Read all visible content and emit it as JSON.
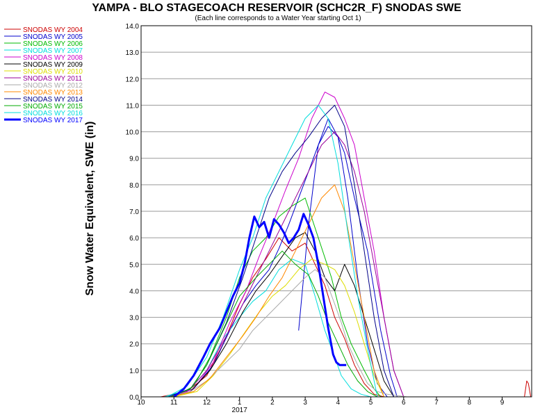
{
  "chart_data": {
    "type": "line",
    "title": "YAMPA - BLO STAGECOACH RESERVOIR (SCHC2R_F) SNODAS SWE",
    "subtitle": "(Each line corresponds to a Water Year starting Oct 1)",
    "ylabel": "Snow Water Equivalent, SWE (in)",
    "xlabel": "",
    "ylim": [
      0,
      14
    ],
    "yticks": [
      "0.0",
      "1.0",
      "2.0",
      "3.0",
      "4.0",
      "5.0",
      "6.0",
      "7.0",
      "8.0",
      "9.0",
      "10.0",
      "11.0",
      "12.0",
      "13.0",
      "14.0"
    ],
    "xlim": [
      10,
      21.9
    ],
    "xticks": [
      {
        "value": 10,
        "label": "10"
      },
      {
        "value": 11,
        "label": "11"
      },
      {
        "value": 12,
        "label": "12"
      },
      {
        "value": 13,
        "label": "1"
      },
      {
        "value": 14,
        "label": "2"
      },
      {
        "value": 15,
        "label": "3"
      },
      {
        "value": 16,
        "label": "4"
      },
      {
        "value": 17,
        "label": "5"
      },
      {
        "value": 18,
        "label": "6"
      },
      {
        "value": 19,
        "label": "7"
      },
      {
        "value": 20,
        "label": "8"
      },
      {
        "value": 21,
        "label": "9"
      }
    ],
    "xtick_year": {
      "value": 13,
      "label": "2017"
    },
    "grid": "horizontal",
    "legend_position": "left",
    "series": [
      {
        "name": "SNODAS WY 2004",
        "color": "#cc0000",
        "width": 1,
        "x": [
          10.6,
          11.4,
          12.0,
          12.5,
          13.0,
          13.4,
          13.8,
          14.2,
          14.6,
          15.0,
          15.3,
          15.6,
          15.9,
          16.2,
          16.5,
          16.8,
          17.1,
          17.4
        ],
        "y": [
          0,
          0.2,
          0.8,
          2.0,
          3.5,
          4.5,
          5.2,
          6.0,
          5.5,
          5.8,
          5.0,
          4.2,
          3.0,
          2.2,
          1.2,
          0.5,
          0.1,
          0
        ],
        "extra": {
          "x": [
            21.68,
            21.75,
            21.8,
            21.87
          ],
          "y": [
            0,
            0.6,
            0.5,
            0
          ]
        }
      },
      {
        "name": "SNODAS WY 2005",
        "color": "#0000cc",
        "width": 1,
        "x": [
          10.8,
          11.6,
          12.2,
          12.7,
          13.1,
          13.5,
          13.9,
          14.2,
          14.5,
          14.8,
          15.1,
          15.4,
          15.7,
          16.0,
          16.3,
          16.6,
          16.9,
          17.2,
          17.5
        ],
        "y": [
          0,
          0.3,
          1.2,
          2.5,
          3.5,
          4.2,
          4.8,
          5.6,
          6.5,
          7.5,
          8.5,
          9.5,
          10.2,
          9.8,
          7.5,
          4.5,
          2.0,
          0.5,
          0
        ],
        "extra": {
          "x": [
            14.8,
            15.1,
            15.4,
            15.7,
            16.0,
            16.2,
            16.5,
            16.9,
            17.3,
            17.6,
            17.8
          ],
          "y": [
            2.5,
            6.5,
            9.5,
            10.5,
            9.8,
            9.2,
            7.5,
            5.5,
            2.5,
            0.8,
            0
          ]
        }
      },
      {
        "name": "SNODAS WY 2006",
        "color": "#00bb00",
        "width": 1,
        "x": [
          11.0,
          11.6,
          12.1,
          12.6,
          13.0,
          13.4,
          13.8,
          14.2,
          14.6,
          15.0,
          15.4,
          15.8,
          16.1,
          16.4,
          16.8,
          17.1,
          17.3
        ],
        "y": [
          0,
          0.4,
          1.5,
          3.0,
          4.5,
          5.5,
          6.0,
          6.8,
          7.2,
          7.5,
          6.0,
          4.5,
          3.0,
          2.0,
          1.0,
          0.3,
          0
        ]
      },
      {
        "name": "SNODAS WY 2007",
        "color": "#00dddd",
        "width": 1,
        "x": [
          10.7,
          11.5,
          12.0,
          12.5,
          13.0,
          13.4,
          13.8,
          14.2,
          14.6,
          15.0,
          15.3,
          15.6,
          15.9,
          16.1,
          16.4,
          16.7,
          17.0
        ],
        "y": [
          0,
          0.3,
          1.0,
          2.2,
          3.0,
          3.6,
          4.0,
          4.8,
          5.2,
          5.0,
          3.8,
          2.5,
          1.5,
          0.8,
          0.3,
          0.1,
          0
        ]
      },
      {
        "name": "SNODAS WY 2008",
        "color": "#cc00cc",
        "width": 1,
        "x": [
          10.9,
          11.6,
          12.2,
          12.7,
          13.2,
          13.6,
          14.0,
          14.4,
          14.8,
          15.2,
          15.6,
          15.9,
          16.2,
          16.5,
          16.8,
          17.1,
          17.4,
          17.7,
          18.0
        ],
        "y": [
          0,
          0.3,
          1.3,
          2.8,
          4.0,
          5.3,
          6.5,
          7.8,
          9.0,
          10.5,
          11.5,
          11.3,
          10.5,
          9.5,
          7.5,
          5.5,
          3.0,
          1.0,
          0
        ]
      },
      {
        "name": "SNODAS WY 2009",
        "color": "#000000",
        "width": 1,
        "x": [
          10.9,
          11.5,
          12.1,
          12.6,
          13.1,
          13.5,
          13.9,
          14.3,
          14.7,
          15.0,
          15.3,
          15.6,
          15.9,
          16.2,
          16.5,
          16.8,
          17.1,
          17.4,
          17.7
        ],
        "y": [
          0,
          0.2,
          1.0,
          2.0,
          3.2,
          4.0,
          4.6,
          5.3,
          6.0,
          6.2,
          5.5,
          4.5,
          4.0,
          5.0,
          4.2,
          3.0,
          1.8,
          0.6,
          0
        ]
      },
      {
        "name": "SNODAS WY 2010",
        "color": "#dddd00",
        "width": 1,
        "x": [
          11.0,
          11.7,
          12.2,
          12.7,
          13.2,
          13.6,
          14.0,
          14.4,
          14.8,
          15.2,
          15.6,
          15.9,
          16.2,
          16.5,
          16.8,
          17.1,
          17.4
        ],
        "y": [
          0,
          0.2,
          0.8,
          1.6,
          2.5,
          3.2,
          3.8,
          4.2,
          4.8,
          5.2,
          5.0,
          4.8,
          4.2,
          3.2,
          2.0,
          0.8,
          0
        ]
      },
      {
        "name": "SNODAS WY 2011",
        "color": "#990099",
        "width": 1,
        "x": [
          10.8,
          11.5,
          12.0,
          12.6,
          13.1,
          13.5,
          13.9,
          14.3,
          14.7,
          15.1,
          15.5,
          15.9,
          16.2,
          16.5,
          16.8,
          17.1,
          17.4,
          17.7,
          18.0
        ],
        "y": [
          0,
          0.3,
          1.0,
          2.3,
          3.5,
          4.5,
          5.5,
          6.5,
          7.5,
          8.5,
          9.5,
          10.0,
          9.5,
          8.5,
          7.0,
          5.0,
          3.0,
          1.0,
          0
        ]
      },
      {
        "name": "SNODAS WY 2012",
        "color": "#aaaaaa",
        "width": 1,
        "x": [
          10.8,
          11.5,
          12.0,
          12.5,
          13.0,
          13.4,
          13.8,
          14.2,
          14.6,
          15.0,
          15.3,
          15.6,
          15.9,
          16.1,
          16.3,
          16.6,
          16.9,
          17.2,
          17.5,
          17.8,
          18.1
        ],
        "y": [
          0,
          0.2,
          0.6,
          1.2,
          1.8,
          2.5,
          3.0,
          3.5,
          4.0,
          4.5,
          4.8,
          4.5,
          3.5,
          2.8,
          2.0,
          1.2,
          0.5,
          0.2,
          0.1,
          0.05,
          0
        ]
      },
      {
        "name": "SNODAS WY 2013",
        "color": "#ff8800",
        "width": 1,
        "x": [
          10.9,
          11.6,
          12.1,
          12.6,
          13.1,
          13.5,
          13.9,
          14.3,
          14.7,
          15.1,
          15.5,
          15.9,
          16.2,
          16.5,
          16.8,
          17.1,
          17.4
        ],
        "y": [
          0,
          0.2,
          0.7,
          1.5,
          2.3,
          3.0,
          3.8,
          4.5,
          5.5,
          6.5,
          7.5,
          8.0,
          7.0,
          5.0,
          3.0,
          1.0,
          0
        ]
      },
      {
        "name": "SNODAS WY 2014",
        "color": "#000088",
        "width": 1,
        "x": [
          10.8,
          11.5,
          12.0,
          12.6,
          13.1,
          13.5,
          13.9,
          14.3,
          14.7,
          15.1,
          15.5,
          15.9,
          16.2,
          16.5,
          16.8,
          17.1,
          17.4,
          17.7
        ],
        "y": [
          0,
          0.3,
          1.2,
          2.8,
          4.5,
          6.0,
          7.5,
          8.5,
          9.2,
          9.8,
          10.5,
          11.0,
          10.2,
          8.0,
          5.5,
          3.0,
          1.0,
          0
        ]
      },
      {
        "name": "SNODAS WY 2015",
        "color": "#00aa00",
        "width": 1,
        "x": [
          10.9,
          11.5,
          12.0,
          12.5,
          13.0,
          13.5,
          13.9,
          14.3,
          14.7,
          15.1,
          15.4,
          15.7,
          16.0,
          16.3,
          16.6,
          16.9,
          17.2
        ],
        "y": [
          0,
          0.3,
          1.2,
          2.5,
          3.8,
          4.5,
          5.0,
          5.5,
          5.0,
          4.6,
          3.8,
          2.8,
          2.0,
          1.2,
          0.6,
          0.2,
          0
        ]
      },
      {
        "name": "SNODAS WY 2016",
        "color": "#00dddd",
        "width": 1,
        "x": [
          10.8,
          11.4,
          12.0,
          12.5,
          13.0,
          13.4,
          13.8,
          14.2,
          14.6,
          15.0,
          15.4,
          15.7,
          16.0,
          16.3,
          16.6,
          16.9,
          17.2
        ],
        "y": [
          0,
          0.4,
          1.5,
          3.0,
          4.8,
          6.0,
          7.5,
          8.5,
          9.5,
          10.5,
          11.0,
          10.5,
          8.8,
          6.2,
          3.8,
          1.8,
          0
        ]
      },
      {
        "name": "SNODAS WY 2017",
        "color": "#0000ff",
        "width": 3,
        "x": [
          11.0,
          11.3,
          11.6,
          11.9,
          12.1,
          12.4,
          12.6,
          12.8,
          13.0,
          13.15,
          13.3,
          13.45,
          13.6,
          13.75,
          13.9,
          14.05,
          14.2,
          14.35,
          14.5,
          14.65,
          14.8,
          14.95,
          15.1,
          15.25,
          15.4,
          15.55,
          15.7,
          15.85,
          15.95,
          16.05,
          16.15,
          16.25
        ],
        "y": [
          0,
          0.3,
          0.8,
          1.5,
          2.0,
          2.6,
          3.2,
          3.8,
          4.3,
          5.0,
          6.0,
          6.8,
          6.4,
          6.6,
          6.0,
          6.7,
          6.5,
          6.2,
          5.8,
          6.0,
          6.3,
          6.9,
          6.5,
          6.0,
          5.0,
          3.8,
          2.6,
          1.6,
          1.3,
          1.2,
          1.2,
          1.2
        ]
      }
    ]
  }
}
